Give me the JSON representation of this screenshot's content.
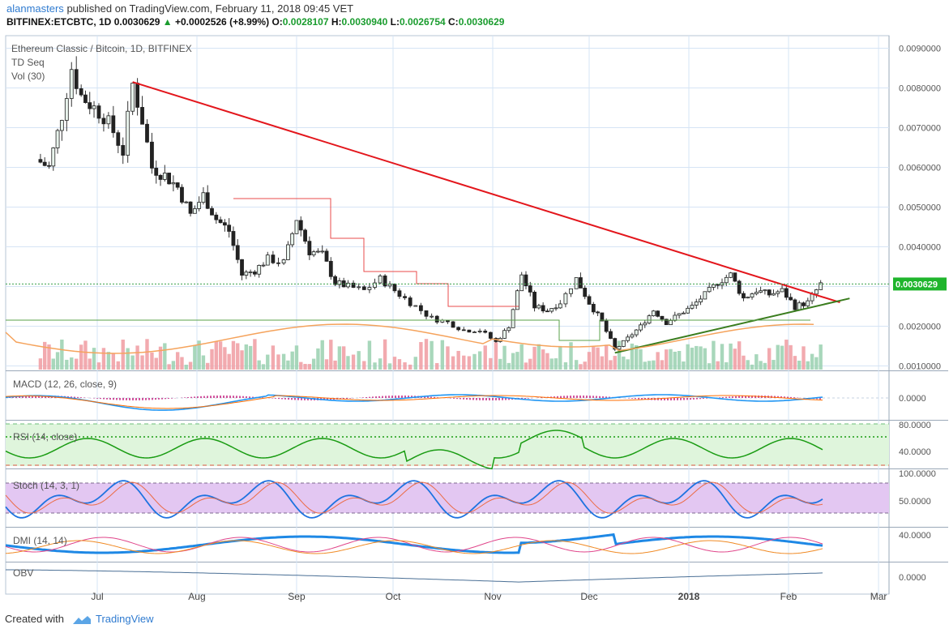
{
  "header": {
    "user": "alanmasters",
    "published": "published on TradingView.com, February 11, 2018 09:45 VET",
    "symbol_line": "BITFINEX:ETCBTC, 1D",
    "last": "0.0030629",
    "change": "+0.0002526 (+8.99%)",
    "open_label": "O:",
    "open": "0.0028107",
    "high_label": "H:",
    "high": "0.0030940",
    "low_label": "L:",
    "low": "0.0026754",
    "close_label": "C:",
    "close": "0.0030629"
  },
  "chart_title": "Ethereum Classic / Bitcoin, 1D, BITFINEX",
  "indicators": {
    "td": "TD Seq",
    "vol": "Vol (30)",
    "macd": "MACD (12, 26, close, 9)",
    "rsi": "RSI (14, close)",
    "stoch": "Stoch (14, 3, 1)",
    "dmi": "DMI (14, 14)",
    "obv": "OBV"
  },
  "footer": {
    "created": "Created with",
    "brand": "TradingView"
  },
  "colors": {
    "up": "#6ba583",
    "down": "#d75442",
    "trend_down": "#e3161c",
    "trend_up": "#3a7d1e",
    "grid": "#d6e4f5",
    "macd": "#2196f3",
    "signal": "#ff6d00",
    "rsi": "#1a9c13",
    "stoch_k": "#1e73e0",
    "stoch_d": "#ec6a43",
    "obv": "#4a6f95",
    "price_tag": "#1fb52c"
  },
  "chart_data": {
    "type": "candlestick",
    "title": "Ethereum Classic / Bitcoin, 1D, BITFINEX",
    "x_ticks": [
      "Jul",
      "Aug",
      "Sep",
      "Oct",
      "Nov",
      "Dec",
      "2018",
      "Feb",
      "Mar"
    ],
    "y_ticks": [
      "0.0090000",
      "0.0080000",
      "0.0070000",
      "0.0060000",
      "0.0050000",
      "0.0040000",
      "0.0020000",
      "0.0010000"
    ],
    "ylim": [
      0.00085,
      0.0093
    ],
    "last_price": "0.0030629",
    "price_path": [
      {
        "d": "Jun 12",
        "c": 0.0062
      },
      {
        "d": "Jun 16",
        "c": 0.006
      },
      {
        "d": "Jun 20",
        "c": 0.0073
      },
      {
        "d": "Jun 23",
        "c": 0.0085
      },
      {
        "d": "Jun 26",
        "c": 0.0078
      },
      {
        "d": "Jun 30",
        "c": 0.0075
      },
      {
        "d": "Jul 3",
        "c": 0.0073
      },
      {
        "d": "Jul 6",
        "c": 0.0069
      },
      {
        "d": "Jul 9",
        "c": 0.0064
      },
      {
        "d": "Jul 12",
        "c": 0.0081
      },
      {
        "d": "Jul 15",
        "c": 0.0072
      },
      {
        "d": "Jul 18",
        "c": 0.006
      },
      {
        "d": "Jul 22",
        "c": 0.0058
      },
      {
        "d": "Jul 26",
        "c": 0.0055
      },
      {
        "d": "Jul 30",
        "c": 0.0048
      },
      {
        "d": "Aug 3",
        "c": 0.0053
      },
      {
        "d": "Aug 7",
        "c": 0.0047
      },
      {
        "d": "Aug 11",
        "c": 0.0044
      },
      {
        "d": "Aug 15",
        "c": 0.0033
      },
      {
        "d": "Aug 19",
        "c": 0.0034
      },
      {
        "d": "Aug 23",
        "c": 0.0037
      },
      {
        "d": "Aug 28",
        "c": 0.0036
      },
      {
        "d": "Sep 1",
        "c": 0.0047
      },
      {
        "d": "Sep 5",
        "c": 0.0039
      },
      {
        "d": "Sep 9",
        "c": 0.0038
      },
      {
        "d": "Sep 13",
        "c": 0.0031
      },
      {
        "d": "Sep 17",
        "c": 0.003
      },
      {
        "d": "Sep 22",
        "c": 0.0029
      },
      {
        "d": "Sep 27",
        "c": 0.0032
      },
      {
        "d": "Oct 3",
        "c": 0.0028
      },
      {
        "d": "Oct 8",
        "c": 0.0025
      },
      {
        "d": "Oct 13",
        "c": 0.0022
      },
      {
        "d": "Oct 18",
        "c": 0.0021
      },
      {
        "d": "Oct 23",
        "c": 0.0019
      },
      {
        "d": "Oct 28",
        "c": 0.0019
      },
      {
        "d": "Nov 2",
        "c": 0.0016
      },
      {
        "d": "Nov 6",
        "c": 0.002
      },
      {
        "d": "Nov 10",
        "c": 0.0033
      },
      {
        "d": "Nov 14",
        "c": 0.0025
      },
      {
        "d": "Nov 18",
        "c": 0.0024
      },
      {
        "d": "Nov 22",
        "c": 0.0026
      },
      {
        "d": "Nov 27",
        "c": 0.0032
      },
      {
        "d": "Dec 1",
        "c": 0.0026
      },
      {
        "d": "Dec 5",
        "c": 0.0021
      },
      {
        "d": "Dec 9",
        "c": 0.0014
      },
      {
        "d": "Dec 13",
        "c": 0.0017
      },
      {
        "d": "Dec 17",
        "c": 0.002
      },
      {
        "d": "Dec 21",
        "c": 0.0024
      },
      {
        "d": "Dec 25",
        "c": 0.0021
      },
      {
        "d": "Dec 29",
        "c": 0.0023
      },
      {
        "d": "Jan 2",
        "c": 0.0025
      },
      {
        "d": "Jan 6",
        "c": 0.0028
      },
      {
        "d": "Jan 10",
        "c": 0.0031
      },
      {
        "d": "Jan 14",
        "c": 0.0033
      },
      {
        "d": "Jan 18",
        "c": 0.0027
      },
      {
        "d": "Jan 22",
        "c": 0.0029
      },
      {
        "d": "Jan 26",
        "c": 0.0028
      },
      {
        "d": "Jan 30",
        "c": 0.0029
      },
      {
        "d": "Feb 3",
        "c": 0.0025
      },
      {
        "d": "Feb 7",
        "c": 0.0026
      },
      {
        "d": "Feb 11",
        "c": 0.0030629
      }
    ],
    "trendlines": [
      {
        "name": "down",
        "from": {
          "d": "Jul 12",
          "v": 0.00815
        },
        "to": {
          "d": "Feb 17",
          "v": 0.0026
        }
      },
      {
        "name": "up",
        "from": {
          "d": "Dec 9",
          "v": 0.00133
        },
        "to": {
          "d": "Feb 20",
          "v": 0.0027
        }
      }
    ],
    "panels": {
      "macd": {
        "y_ticks": [
          "0.0000"
        ]
      },
      "rsi": {
        "y_ticks": [
          "80.0000",
          "40.0000"
        ],
        "bands": [
          70,
          30
        ],
        "mid": 50
      },
      "stoch": {
        "y_ticks": [
          "100.0000",
          "50.0000"
        ],
        "bands": [
          80,
          20
        ]
      },
      "dmi": {
        "y_ticks": [
          "40.0000"
        ]
      },
      "obv": {
        "y_ticks": [
          "0.0000"
        ]
      }
    }
  }
}
